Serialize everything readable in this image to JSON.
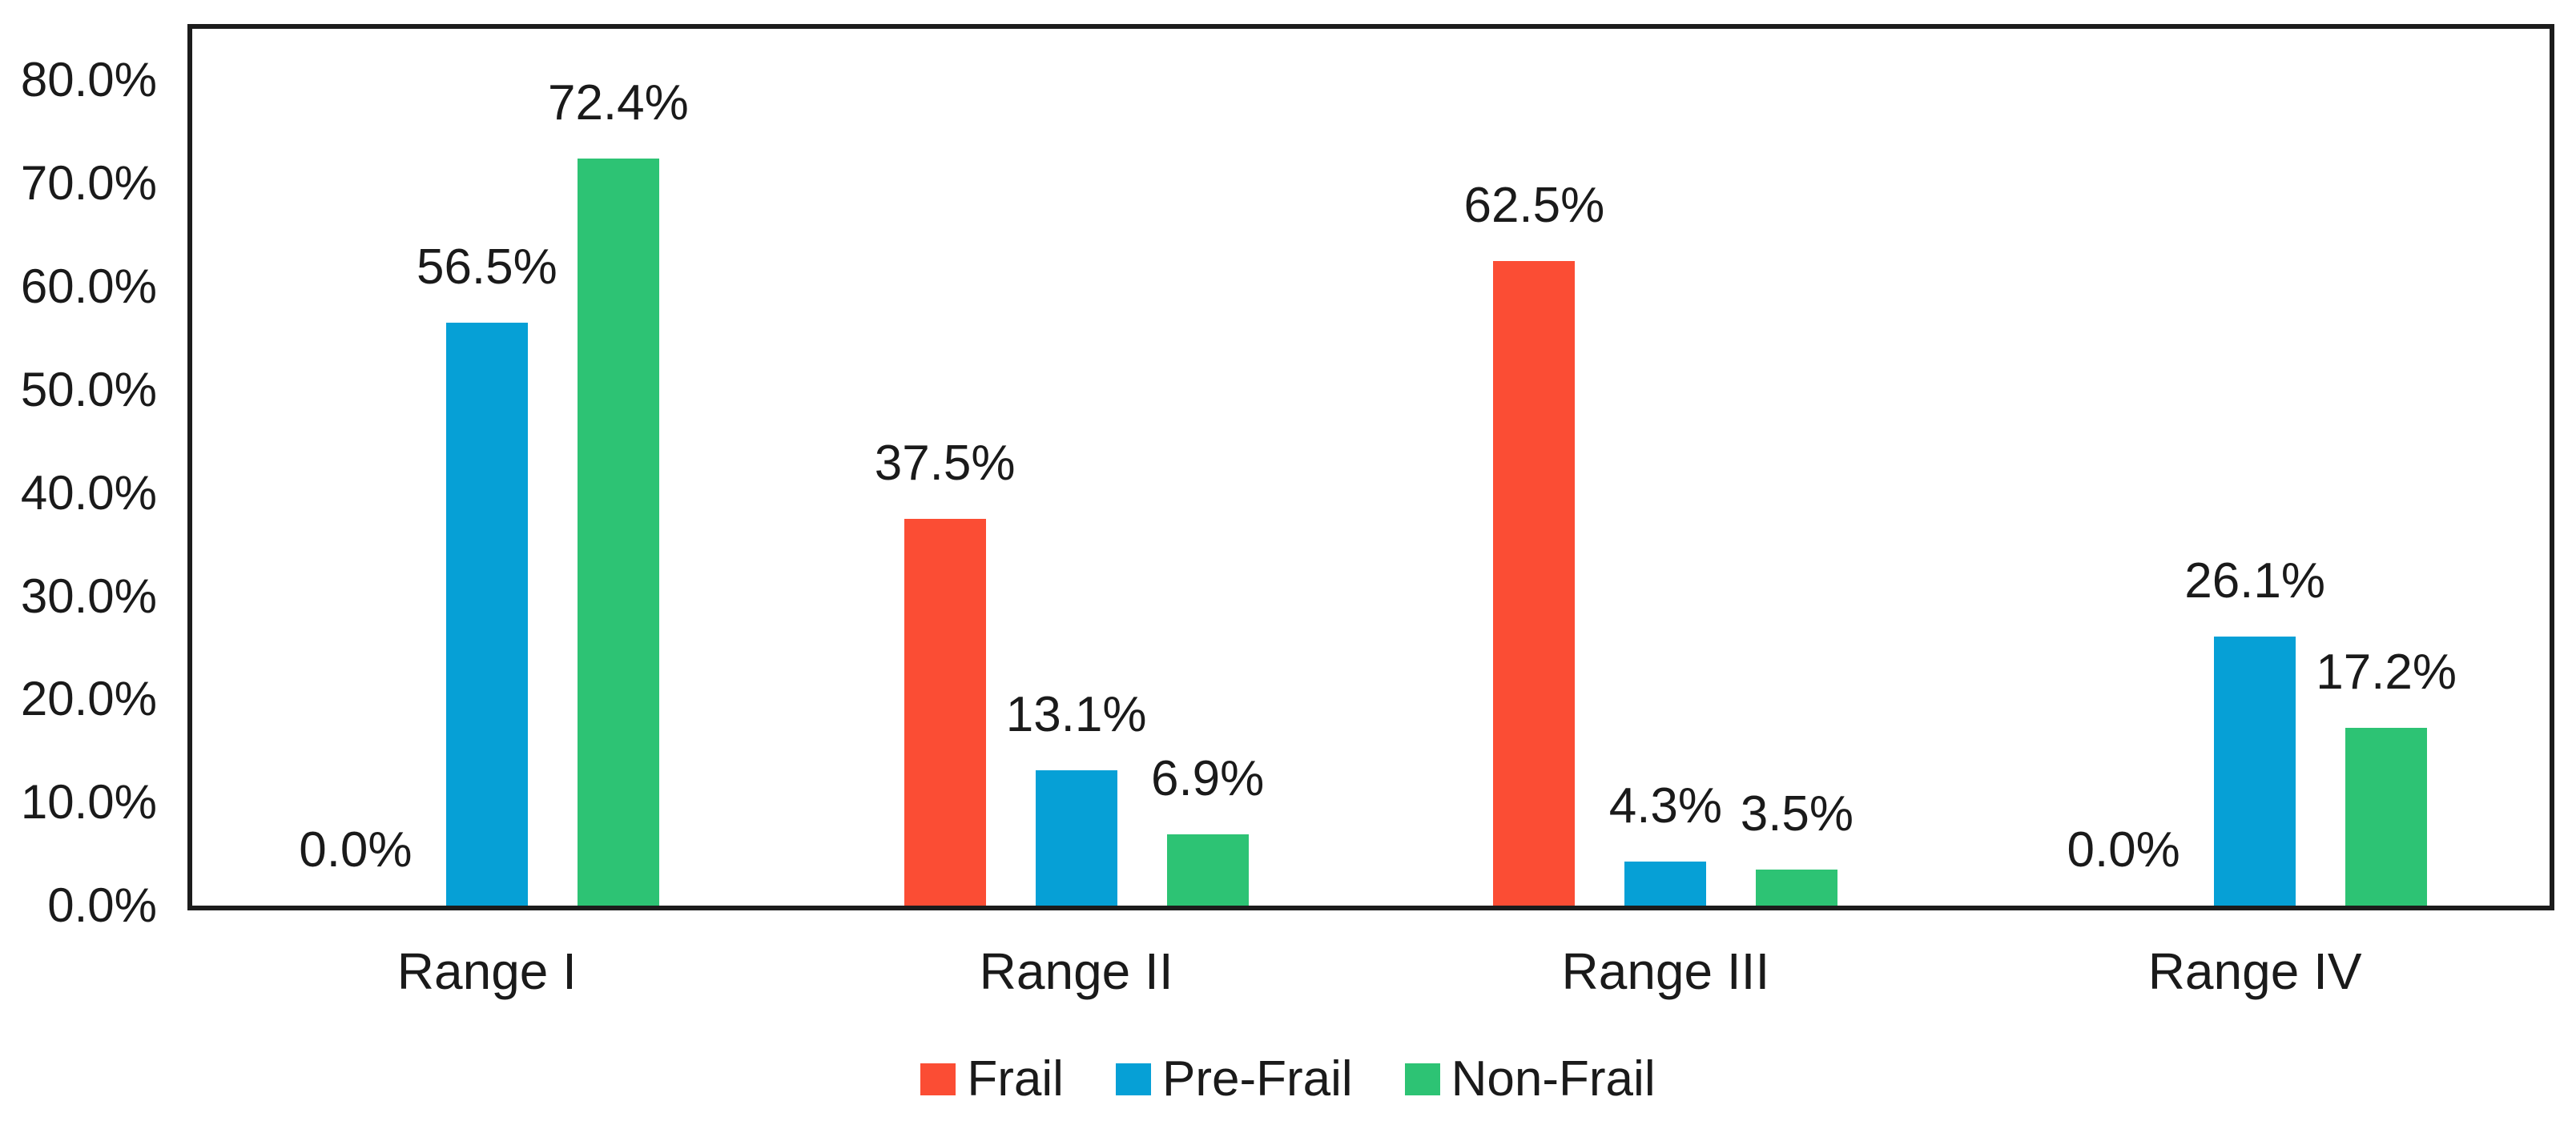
{
  "colors": {
    "background": "#ffffff",
    "axis_border": "#1c1c1c",
    "text": "#1a1a1a",
    "frail": "#fb4d34",
    "pre_frail": "#06a0d6",
    "non_frail": "#2dc374"
  },
  "chart_data": {
    "type": "bar",
    "categories": [
      "Range I",
      "Range II",
      "Range III",
      "Range IV"
    ],
    "series": [
      {
        "name": "Frail",
        "color": "#fb4d34",
        "values": [
          0.0,
          37.5,
          62.5,
          0.0
        ],
        "labels": [
          "0.0%",
          "37.5%",
          "62.5%",
          "0.0%"
        ]
      },
      {
        "name": "Pre-Frail",
        "color": "#06a0d6",
        "values": [
          56.5,
          13.1,
          4.3,
          26.1
        ],
        "labels": [
          "56.5%",
          "13.1%",
          "4.3%",
          "26.1%"
        ]
      },
      {
        "name": "Non-Frail",
        "color": "#2dc374",
        "values": [
          72.4,
          6.9,
          3.5,
          17.2
        ],
        "labels": [
          "72.4%",
          "6.9%",
          "3.5%",
          "17.2%"
        ]
      }
    ],
    "y_axis": {
      "tick_labels": [
        "80.0%",
        "70.0%",
        "60.0%",
        "50.0%",
        "40.0%",
        "30.0%",
        "20.0%",
        "10.0%",
        "0.0%"
      ],
      "tick_values": [
        80,
        70,
        60,
        50,
        40,
        30,
        20,
        10,
        0
      ],
      "ylim": [
        0,
        85
      ],
      "gridlines": false
    },
    "legend": {
      "position": "bottom",
      "items": [
        "Frail",
        "Pre-Frail",
        "Non-Frail"
      ]
    }
  }
}
